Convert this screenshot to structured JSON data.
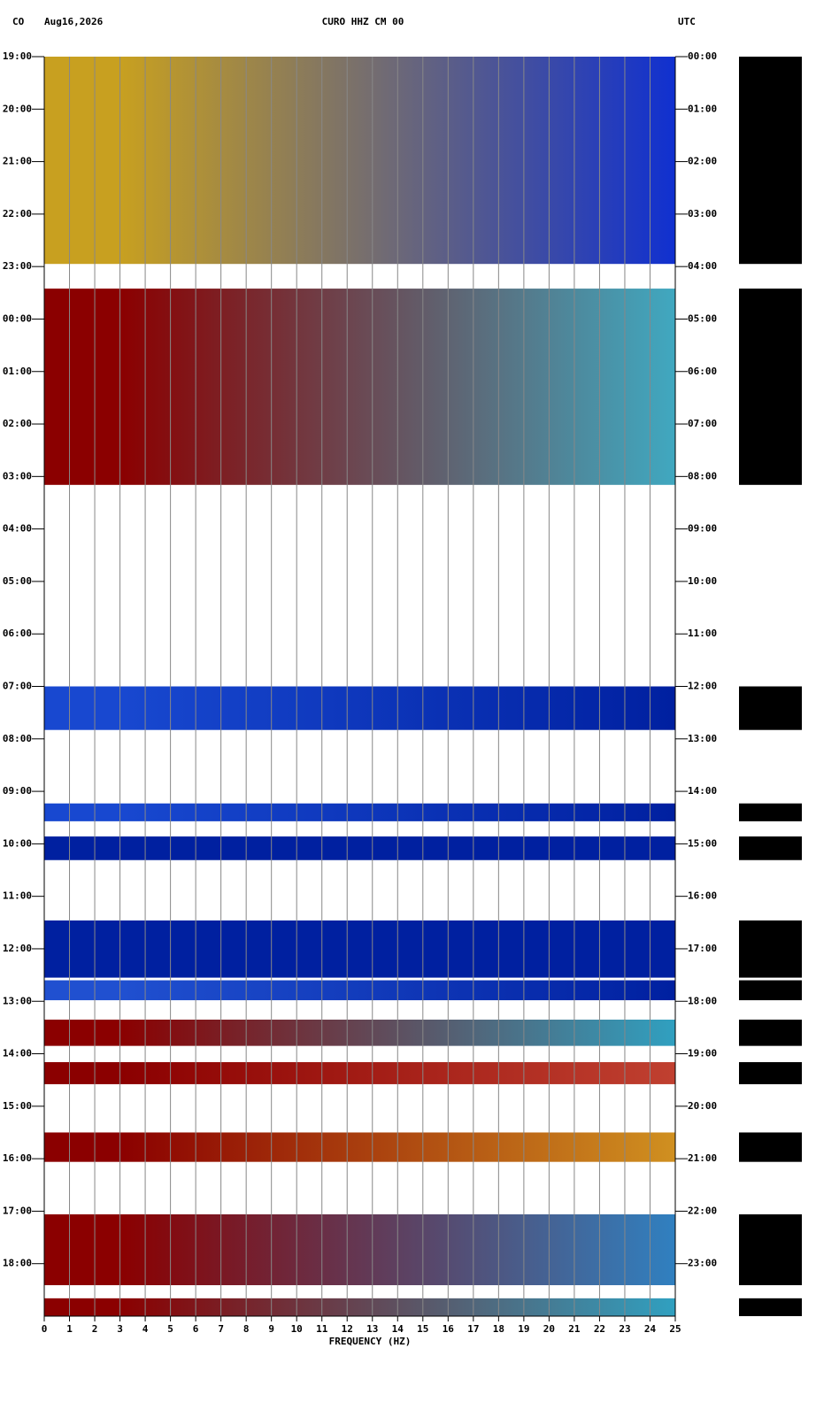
{
  "chart_data": {
    "type": "spectrogram",
    "station_code": "CO",
    "date": "Aug16,2026",
    "title": "CURO HHZ CM 00",
    "timezone_label": "UTC",
    "xlabel": "FREQUENCY (HZ)",
    "xlim": [
      0,
      25
    ],
    "xticks": [
      0,
      1,
      2,
      3,
      4,
      5,
      6,
      7,
      8,
      9,
      10,
      11,
      12,
      13,
      14,
      15,
      16,
      17,
      18,
      19,
      20,
      21,
      22,
      23,
      24,
      25
    ],
    "ylim": [
      0,
      24
    ],
    "y_inverted": true,
    "yticks": [
      {
        "value": 0,
        "label": "19:00"
      },
      {
        "value": 1,
        "label": "20:00"
      },
      {
        "value": 2,
        "label": "21:00"
      },
      {
        "value": 3,
        "label": "22:00"
      },
      {
        "value": 4,
        "label": "23:00"
      },
      {
        "value": 5,
        "label": "00:00"
      },
      {
        "value": 6,
        "label": "01:00"
      },
      {
        "value": 7,
        "label": "02:00"
      },
      {
        "value": 8,
        "label": "03:00"
      },
      {
        "value": 9,
        "label": "04:00"
      },
      {
        "value": 10,
        "label": "05:00"
      },
      {
        "value": 11,
        "label": "06:00"
      },
      {
        "value": 12,
        "label": "07:00"
      },
      {
        "value": 13,
        "label": "08:00"
      },
      {
        "value": 14,
        "label": "09:00"
      },
      {
        "value": 15,
        "label": "10:00"
      },
      {
        "value": 16,
        "label": "11:00"
      },
      {
        "value": 17,
        "label": "12:00"
      },
      {
        "value": 18,
        "label": "13:00"
      },
      {
        "value": 19,
        "label": "14:00"
      },
      {
        "value": 20,
        "label": "15:00"
      },
      {
        "value": 21,
        "label": "16:00"
      },
      {
        "value": 22,
        "label": "17:00"
      },
      {
        "value": 23,
        "label": "18:00"
      }
    ],
    "y2ticks": [
      {
        "value": 0,
        "label": "00:00"
      },
      {
        "value": 1,
        "label": "01:00"
      },
      {
        "value": 2,
        "label": "02:00"
      },
      {
        "value": 3,
        "label": "03:00"
      },
      {
        "value": 4,
        "label": "04:00"
      },
      {
        "value": 5,
        "label": "05:00"
      },
      {
        "value": 6,
        "label": "06:00"
      },
      {
        "value": 7,
        "label": "07:00"
      },
      {
        "value": 8,
        "label": "08:00"
      },
      {
        "value": 9,
        "label": "09:00"
      },
      {
        "value": 10,
        "label": "10:00"
      },
      {
        "value": 11,
        "label": "11:00"
      },
      {
        "value": 12,
        "label": "12:00"
      },
      {
        "value": 13,
        "label": "13:00"
      },
      {
        "value": 14,
        "label": "14:00"
      },
      {
        "value": 15,
        "label": "15:00"
      },
      {
        "value": 16,
        "label": "16:00"
      },
      {
        "value": 17,
        "label": "17:00"
      },
      {
        "value": 18,
        "label": "18:00"
      },
      {
        "value": 19,
        "label": "19:00"
      },
      {
        "value": 20,
        "label": "20:00"
      },
      {
        "value": 21,
        "label": "21:00"
      },
      {
        "value": 22,
        "label": "22:00"
      },
      {
        "value": 23,
        "label": "23:00"
      }
    ],
    "grid": true,
    "trace_color": "#000000",
    "segments": [
      {
        "start": 0.0,
        "end": 3.95,
        "low_color": "#c8a020",
        "high_color": "#1030d0"
      },
      {
        "start": 4.42,
        "end": 8.16,
        "low_color": "#8b0000",
        "high_color": "#40a8c0"
      },
      {
        "start": 12.0,
        "end": 12.83,
        "low_color": "#1848d0",
        "high_color": "#0020a0"
      },
      {
        "start": 14.23,
        "end": 14.57,
        "low_color": "#1848d0",
        "high_color": "#0020a0"
      },
      {
        "start": 14.86,
        "end": 15.31,
        "low_color": "#0020a0",
        "high_color": "#0020a0"
      },
      {
        "start": 16.46,
        "end": 17.55,
        "low_color": "#0020a0",
        "high_color": "#0020a0"
      },
      {
        "start": 17.6,
        "end": 17.98,
        "low_color": "#2050d0",
        "high_color": "#0020a0"
      },
      {
        "start": 18.35,
        "end": 18.85,
        "low_color": "#8b0000",
        "high_color": "#30a0c0"
      },
      {
        "start": 19.16,
        "end": 19.58,
        "low_color": "#8b0000",
        "high_color": "#c04030"
      },
      {
        "start": 20.5,
        "end": 21.06,
        "low_color": "#8b0000",
        "high_color": "#d09020"
      },
      {
        "start": 22.06,
        "end": 23.41,
        "low_color": "#8b0000",
        "high_color": "#3080c0"
      },
      {
        "start": 23.66,
        "end": 24.0,
        "low_color": "#8b0000",
        "high_color": "#30a0c0"
      }
    ]
  }
}
